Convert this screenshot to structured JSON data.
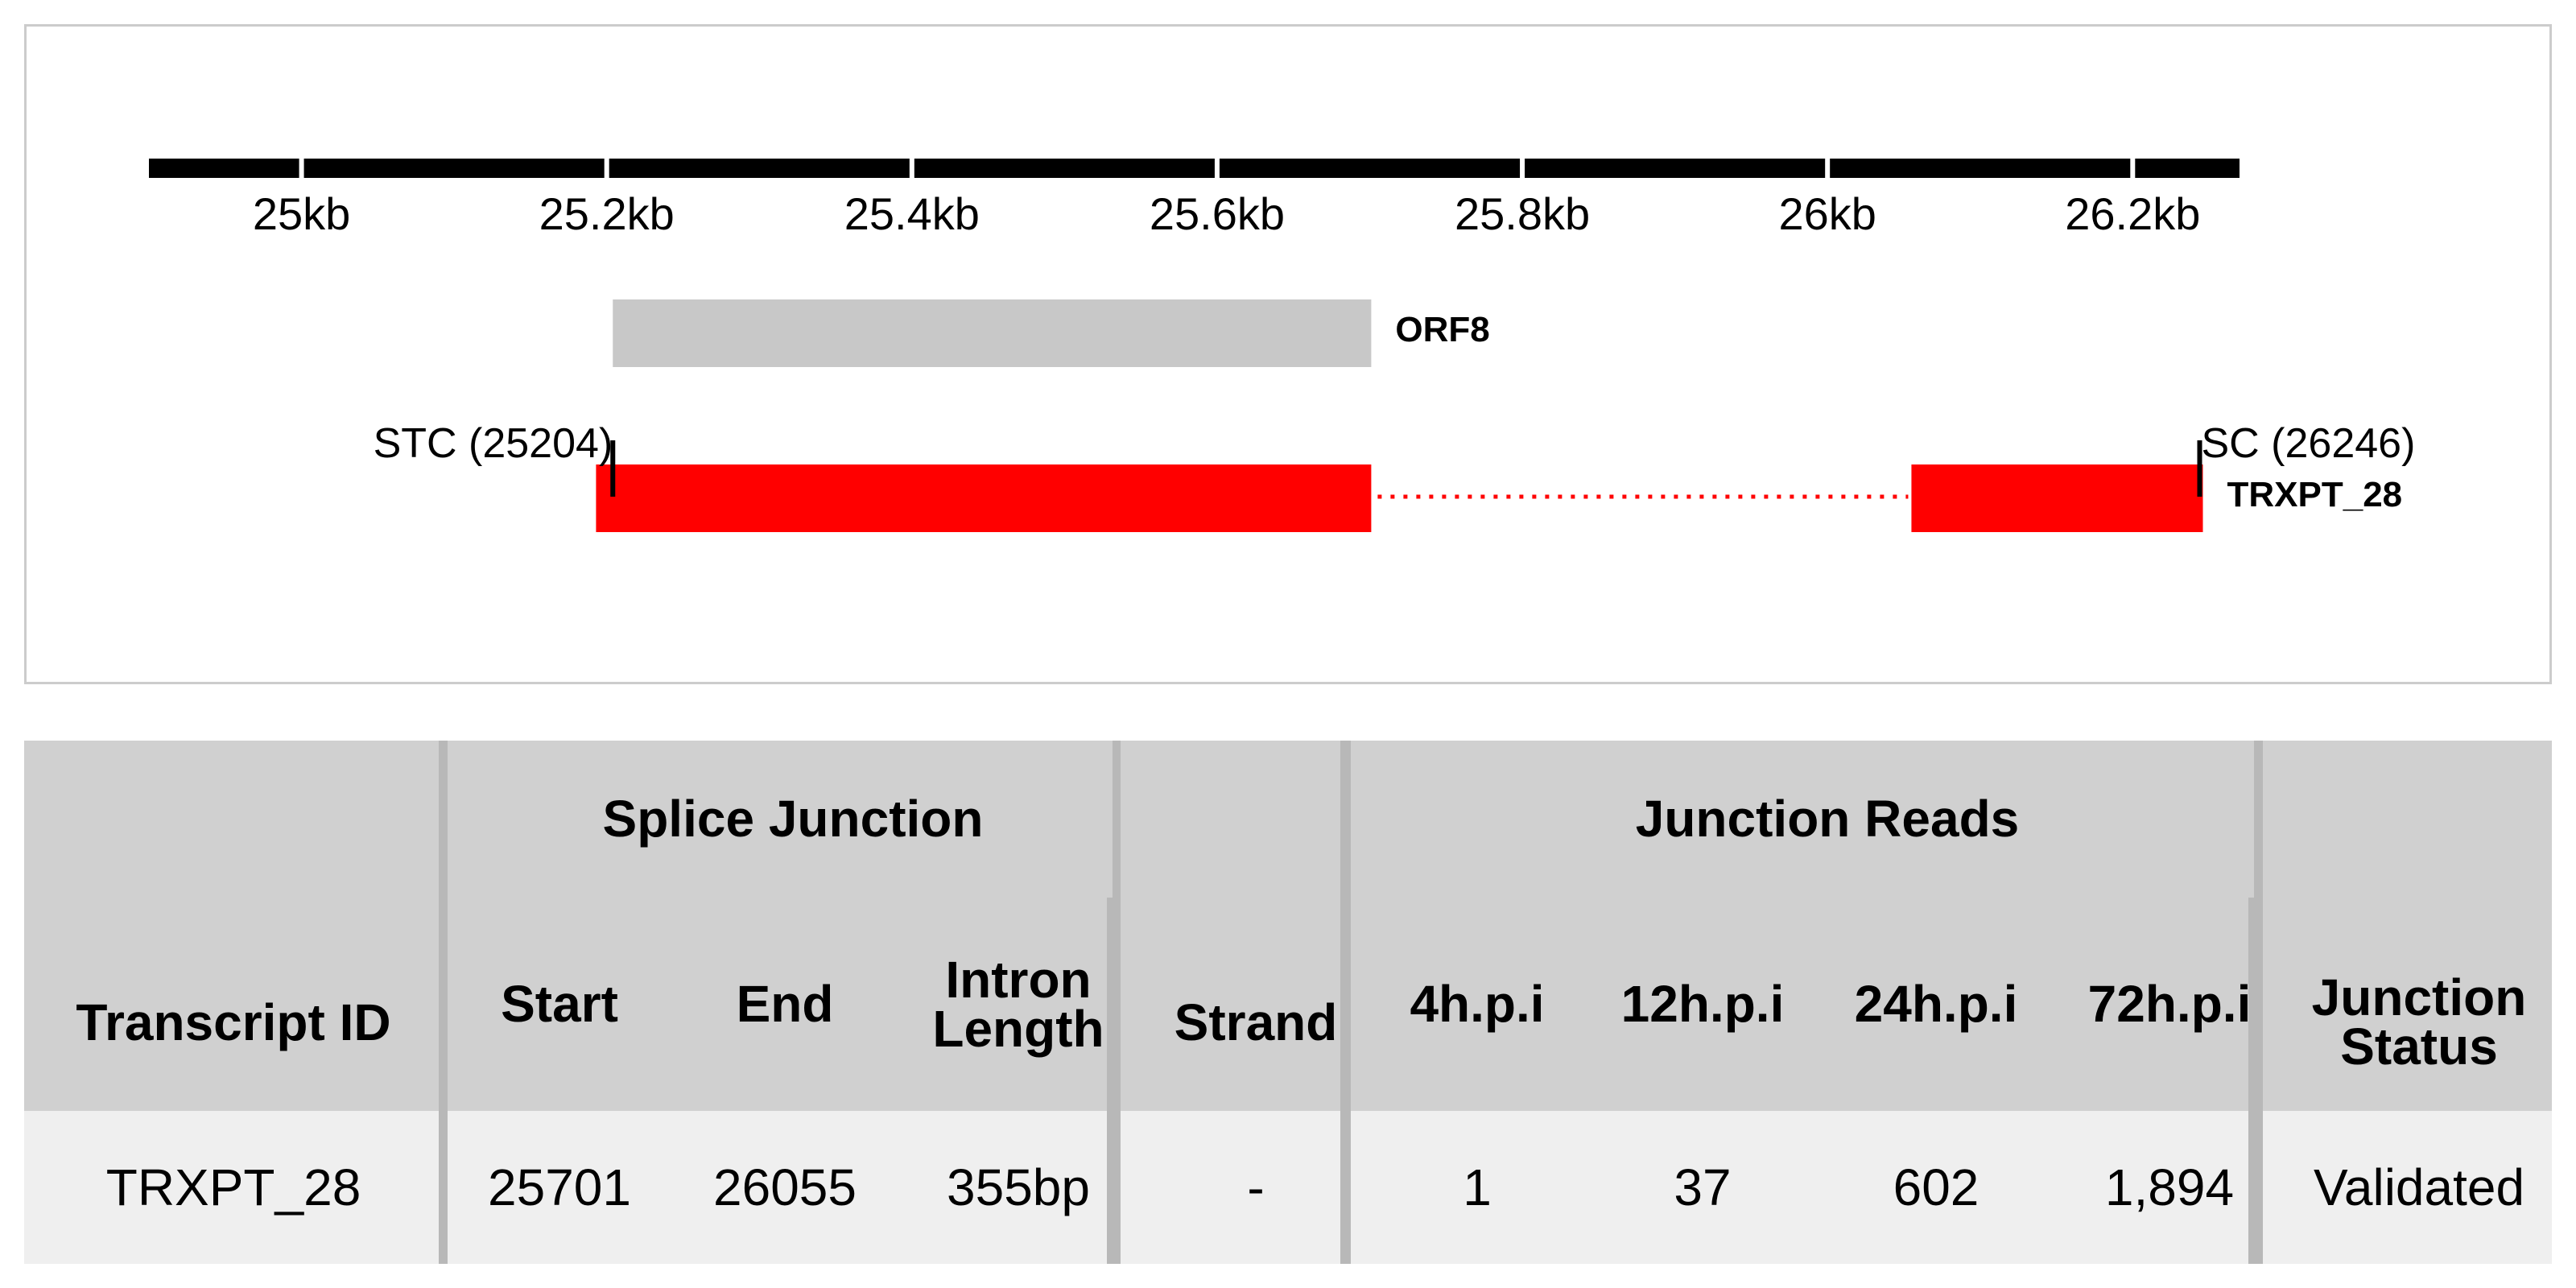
{
  "axis": {
    "ticks": [
      {
        "value": 25000,
        "label": "25kb"
      },
      {
        "value": 25200,
        "label": "25.2kb"
      },
      {
        "value": 25400,
        "label": "25.4kb"
      },
      {
        "value": 25600,
        "label": "25.6kb"
      },
      {
        "value": 25800,
        "label": "25.8kb"
      },
      {
        "value": 26000,
        "label": "26kb"
      },
      {
        "value": 26200,
        "label": "26.2kb"
      }
    ],
    "range": [
      24900,
      26270
    ]
  },
  "orf": {
    "name": "ORF8",
    "start": 25204,
    "end": 25701,
    "color": "#c8c8c8"
  },
  "transcript": {
    "name": "TRXPT_28",
    "color": "#ff0000",
    "exons": [
      {
        "start": 25193,
        "end": 25701
      },
      {
        "start": 26055,
        "end": 26246
      }
    ],
    "intron": {
      "start": 25701,
      "end": 26055
    }
  },
  "sites": {
    "stc": {
      "label": "STC (25204)",
      "position": 25204
    },
    "sc": {
      "label": "SC (26246)",
      "position": 26246
    }
  },
  "table": {
    "group_headers": {
      "splice_junction": "Splice Junction",
      "junction_reads": "Junction Reads"
    },
    "columns": {
      "transcript_id": "Transcript ID",
      "start": "Start",
      "end": "End",
      "intron_length": "Intron Length",
      "strand": "Strand",
      "h4": "4h.p.i",
      "h12": "12h.p.i",
      "h24": "24h.p.i",
      "h72": "72h.p.i",
      "junction_status": "Junction Status"
    },
    "rows": [
      {
        "transcript_id": "TRXPT_28",
        "start": "25701",
        "end": "26055",
        "intron_length": "355bp",
        "strand": "-",
        "h4": "1",
        "h12": "37",
        "h24": "602",
        "h72": "1,894",
        "junction_status": "Validated"
      }
    ]
  }
}
